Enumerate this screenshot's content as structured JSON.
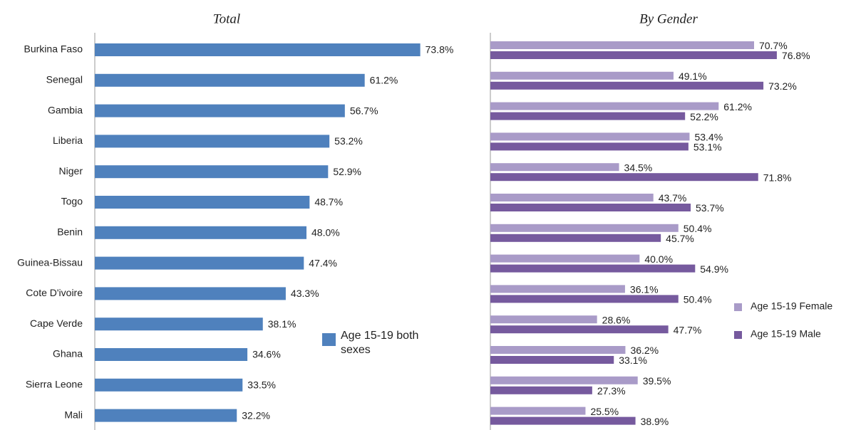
{
  "chart_data": [
    {
      "type": "bar",
      "orientation": "horizontal",
      "title": "Total",
      "categories": [
        "Burkina Faso",
        "Senegal",
        "Gambia",
        "Liberia",
        "Niger",
        "Togo",
        "Benin",
        "Guinea-Bissau",
        "Cote D'ivoire",
        "Cape Verde",
        "Ghana",
        "Sierra Leone",
        "Mali"
      ],
      "series": [
        {
          "name": "Age 15-19 both sexes",
          "color": "#4f81bd",
          "values": [
            73.8,
            61.2,
            56.7,
            53.2,
            52.9,
            48.7,
            48.0,
            47.4,
            43.3,
            38.1,
            34.6,
            33.5,
            32.2
          ],
          "value_labels": [
            "73.8%",
            "61.2%",
            "56.7%",
            "53.2%",
            "52.9%",
            "48.7%",
            "48.0%",
            "47.4%",
            "43.3%",
            "38.1%",
            "34.6%",
            "33.5%",
            "32.2%"
          ]
        }
      ],
      "xlim": [
        0,
        80
      ]
    },
    {
      "type": "bar",
      "orientation": "horizontal",
      "title": "By Gender",
      "series": [
        {
          "name": "Age 15-19 Female",
          "color": "#a99bc8",
          "values": [
            70.7,
            49.1,
            61.2,
            53.4,
            34.5,
            43.7,
            50.4,
            40.0,
            36.1,
            28.6,
            36.2,
            39.5,
            25.5
          ],
          "value_labels": [
            "70.7%",
            "49.1%",
            "61.2%",
            "53.4%",
            "34.5%",
            "43.7%",
            "50.4%",
            "40.0%",
            "36.1%",
            "28.6%",
            "36.2%",
            "39.5%",
            "25.5%"
          ]
        },
        {
          "name": "Age 15-19 Male",
          "color": "#765a9e",
          "values": [
            76.8,
            73.2,
            52.2,
            53.1,
            71.8,
            53.7,
            45.7,
            54.9,
            50.4,
            47.7,
            33.1,
            27.3,
            38.9
          ],
          "value_labels": [
            "76.8%",
            "73.2%",
            "52.2%",
            "53.1%",
            "71.8%",
            "53.7%",
            "45.7%",
            "54.9%",
            "50.4%",
            "47.7%",
            "33.1%",
            "27.3%",
            "38.9%"
          ]
        }
      ],
      "xlim": [
        0,
        90
      ]
    }
  ]
}
